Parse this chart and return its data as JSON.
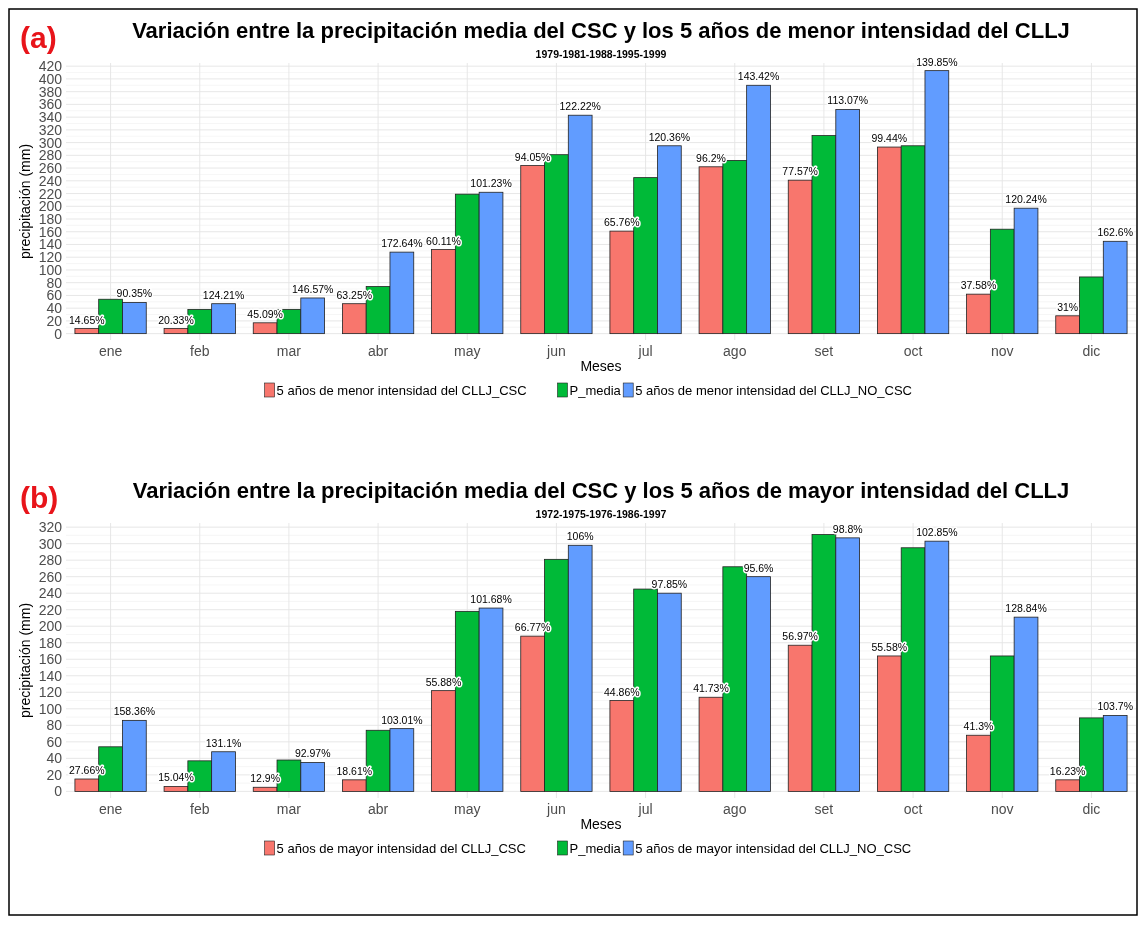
{
  "chart_data": [
    {
      "type": "bar",
      "title": "Variación entre la precipitación media del CSC y los 5 años de menor intensidad del CLLJ",
      "subtitle": "1979-1981-1988-1995-1999",
      "xlabel": "Meses",
      "ylabel": "precipitación (mm)",
      "categories": [
        "ene",
        "feb",
        "mar",
        "abr",
        "may",
        "jun",
        "jul",
        "ago",
        "set",
        "oct",
        "nov",
        "dic"
      ],
      "series": [
        {
          "name": "5 años de menor intensidad del CLLJ_CSC",
          "color": "#f8766d",
          "values": [
            8,
            8,
            17,
            47,
            132,
            264,
            161,
            262,
            241,
            293,
            62,
            28
          ]
        },
        {
          "name": "P_media",
          "color": "#00ba38",
          "values": [
            54,
            38,
            38,
            74,
            219,
            281,
            245,
            272,
            311,
            295,
            164,
            89
          ]
        },
        {
          "name": "5 años de menor intensidad del CLLJ_NO_CSC",
          "color": "#619cff",
          "values": [
            49,
            47,
            56,
            128,
            222,
            343,
            295,
            390,
            352,
            413,
            197,
            145
          ]
        }
      ],
      "ylim": [
        -10,
        425
      ],
      "yticks": [
        0,
        20,
        40,
        60,
        80,
        100,
        120,
        140,
        160,
        180,
        200,
        220,
        240,
        260,
        280,
        300,
        320,
        340,
        360,
        380,
        400,
        420
      ],
      "grid": true,
      "legend": "bottom",
      "annotations": [
        "(a)",
        "14.65%",
        "90.35%",
        "20.33%",
        "124.21%",
        "45.09%",
        "146.57%",
        "63.25%",
        "172.64%",
        "60.11%",
        "101.23%",
        "94.05%",
        "122.22%",
        "65.76%",
        "120.36%",
        "96.2%",
        "143.42%",
        "77.57%",
        "113.07%",
        "99.44%",
        "139.85%",
        "37.58%",
        "120.24%",
        "31%",
        "162.6%"
      ]
    },
    {
      "type": "bar",
      "title": "Variación entre la precipitación media del CSC y los 5 años de mayor intensidad del CLLJ",
      "subtitle": "1972-1975-1976-1986-1997",
      "xlabel": "Meses",
      "ylabel": "precipitación (mm)",
      "categories": [
        "ene",
        "feb",
        "mar",
        "abr",
        "may",
        "jun",
        "jul",
        "ago",
        "set",
        "oct",
        "nov",
        "dic"
      ],
      "series": [
        {
          "name": "5 años de mayor intensidad del CLLJ_CSC",
          "color": "#f8766d",
          "values": [
            15,
            6,
            5,
            14,
            122,
            188,
            110,
            114,
            177,
            164,
            68,
            14
          ]
        },
        {
          "name": "P_media",
          "color": "#00ba38",
          "values": [
            54,
            37,
            38,
            74,
            218,
            281,
            245,
            272,
            311,
            295,
            164,
            89
          ]
        },
        {
          "name": "5 años de mayor intensidad del CLLJ_NO_CSC",
          "color": "#619cff",
          "values": [
            86,
            48,
            35,
            76,
            222,
            298,
            240,
            260,
            307,
            303,
            211,
            92
          ]
        }
      ],
      "ylim": [
        -8,
        325
      ],
      "yticks": [
        0,
        20,
        40,
        60,
        80,
        100,
        120,
        140,
        160,
        180,
        200,
        220,
        240,
        260,
        280,
        300,
        320
      ],
      "grid": true,
      "legend": "bottom",
      "annotations": [
        "(b)",
        "27.66%",
        "158.36%",
        "15.04%",
        "131.1%",
        "12.9%",
        "92.97%",
        "18.61%",
        "103.01%",
        "55.88%",
        "101.68%",
        "66.77%",
        "106%",
        "44.86%",
        "97.85%",
        "41.73%",
        "95.6%",
        "56.97%",
        "98.8%",
        "55.58%",
        "102.85%",
        "41.3%",
        "128.84%",
        "16.23%",
        "103.7%"
      ]
    }
  ]
}
